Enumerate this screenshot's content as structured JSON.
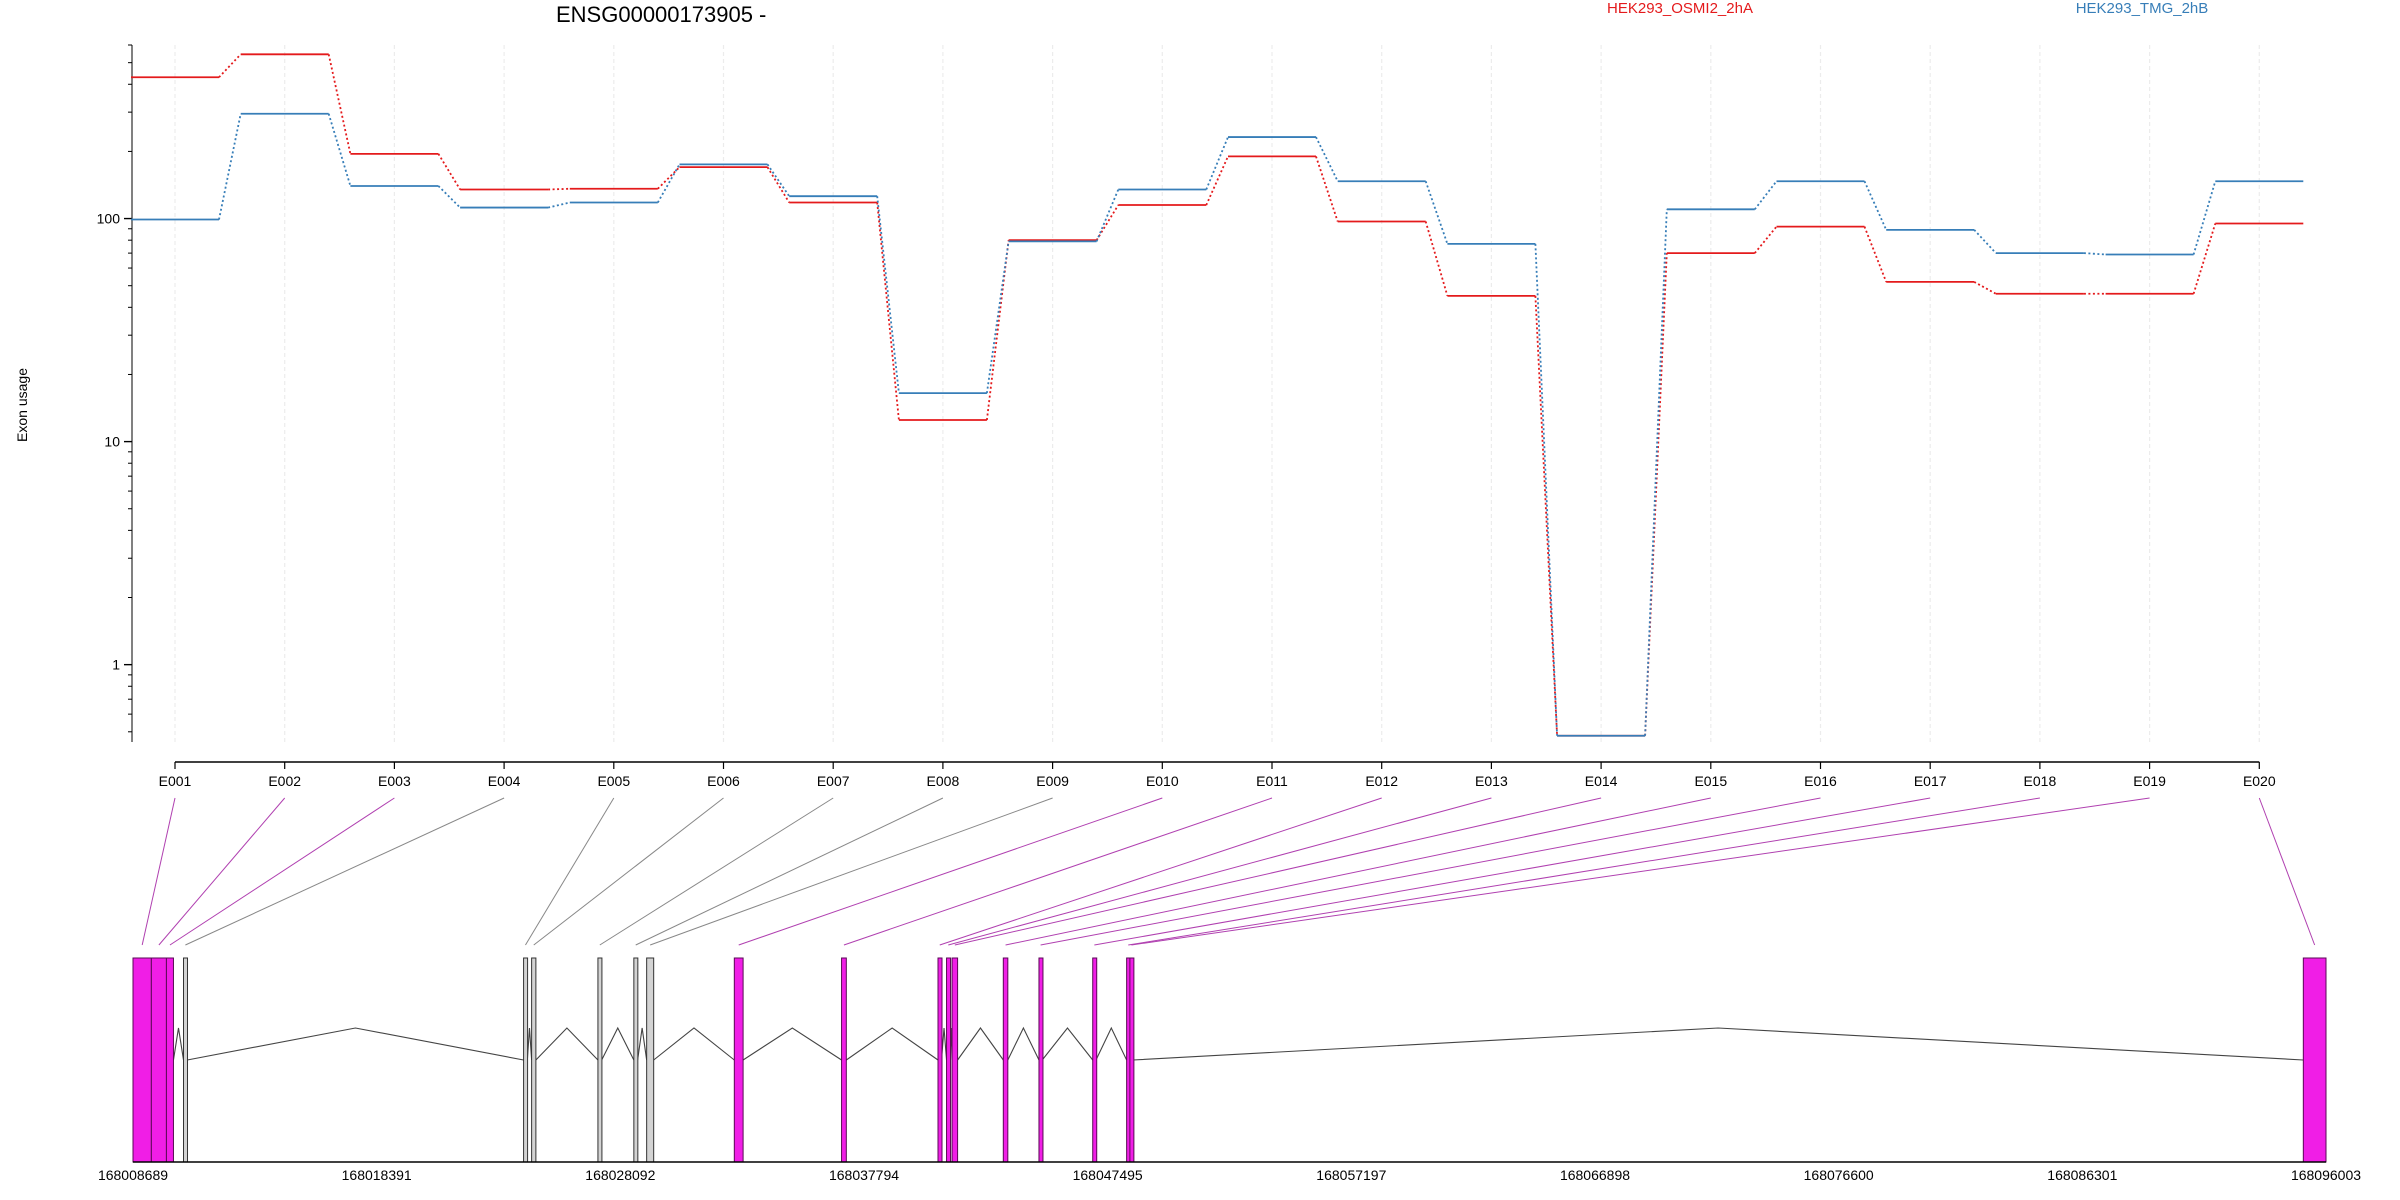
{
  "title": "ENSG00000173905 -",
  "chart_data": {
    "type": "line",
    "title": "ENSG00000173905 -",
    "ylabel": "Exon usage",
    "yscale": "log",
    "ylim": [
      0.45,
      600
    ],
    "yticks": [
      1,
      10,
      100
    ],
    "ytick_labels": [
      "1",
      "10",
      "100"
    ],
    "categories": [
      "E001",
      "E002",
      "E003",
      "E004",
      "E005",
      "E006",
      "E007",
      "E008",
      "E009",
      "E010",
      "E011",
      "E012",
      "E013",
      "E014",
      "E015",
      "E016",
      "E017",
      "E018",
      "E019",
      "E020"
    ],
    "series": [
      {
        "name": "HEK293_OSMI2_2hA",
        "color": "#e41a1c",
        "values": [
          430,
          545,
          195,
          135,
          136,
          170,
          118,
          12.5,
          80,
          115,
          190,
          97,
          45,
          0.48,
          70,
          92,
          52,
          46,
          46,
          95
        ]
      },
      {
        "name": "HEK293_TMG_2hB",
        "color": "#377eb8",
        "values": [
          99,
          295,
          140,
          112,
          118,
          175,
          126,
          16.5,
          79,
          135,
          232,
          147,
          77,
          0.48,
          110,
          147,
          89,
          70,
          69,
          147
        ]
      }
    ],
    "genomic_axis": {
      "tick_labels": [
        "168008689",
        "168018391",
        "168028092",
        "168037794",
        "168047495",
        "168057197",
        "168066898",
        "168076600",
        "168086301",
        "168096003"
      ]
    },
    "gene_model": {
      "highlight_color": "#f01ee6",
      "exons": [
        {
          "exon": "E001",
          "start": 168008689,
          "end": 168009420,
          "highlighted": true
        },
        {
          "exon": "E002",
          "start": 168009420,
          "end": 168010020,
          "highlighted": true
        },
        {
          "exon": "E003",
          "start": 168010020,
          "end": 168010300,
          "highlighted": true
        },
        {
          "exon": "E004",
          "start": 168010700,
          "end": 168010850,
          "highlighted": false
        },
        {
          "exon": "E005",
          "start": 168024240,
          "end": 168024390,
          "highlighted": false
        },
        {
          "exon": "E006",
          "start": 168024560,
          "end": 168024730,
          "highlighted": false
        },
        {
          "exon": "E007",
          "start": 168027200,
          "end": 168027350,
          "highlighted": false
        },
        {
          "exon": "E008",
          "start": 168028630,
          "end": 168028780,
          "highlighted": false
        },
        {
          "exon": "E009",
          "start": 168029140,
          "end": 168029420,
          "highlighted": false
        },
        {
          "exon": "E010",
          "start": 168032630,
          "end": 168032980,
          "highlighted": true
        },
        {
          "exon": "E011",
          "start": 168036900,
          "end": 168037090,
          "highlighted": true
        },
        {
          "exon": "E012",
          "start": 168040740,
          "end": 168040880,
          "highlighted": true
        },
        {
          "exon": "E013",
          "start": 168041080,
          "end": 168041220,
          "highlighted": true
        },
        {
          "exon": "E014",
          "start": 168041300,
          "end": 168041520,
          "highlighted": true
        },
        {
          "exon": "E015",
          "start": 168043340,
          "end": 168043520,
          "highlighted": true
        },
        {
          "exon": "E016",
          "start": 168044760,
          "end": 168044890,
          "highlighted": true
        },
        {
          "exon": "E017",
          "start": 168046900,
          "end": 168047030,
          "highlighted": true
        },
        {
          "exon": "E018",
          "start": 168048250,
          "end": 168048380,
          "highlighted": true
        },
        {
          "exon": "E019",
          "start": 168048380,
          "end": 168048500,
          "highlighted": true
        },
        {
          "exon": "E020",
          "start": 168095100,
          "end": 168096003,
          "highlighted": true
        }
      ]
    },
    "grid": true,
    "legend": "top"
  }
}
